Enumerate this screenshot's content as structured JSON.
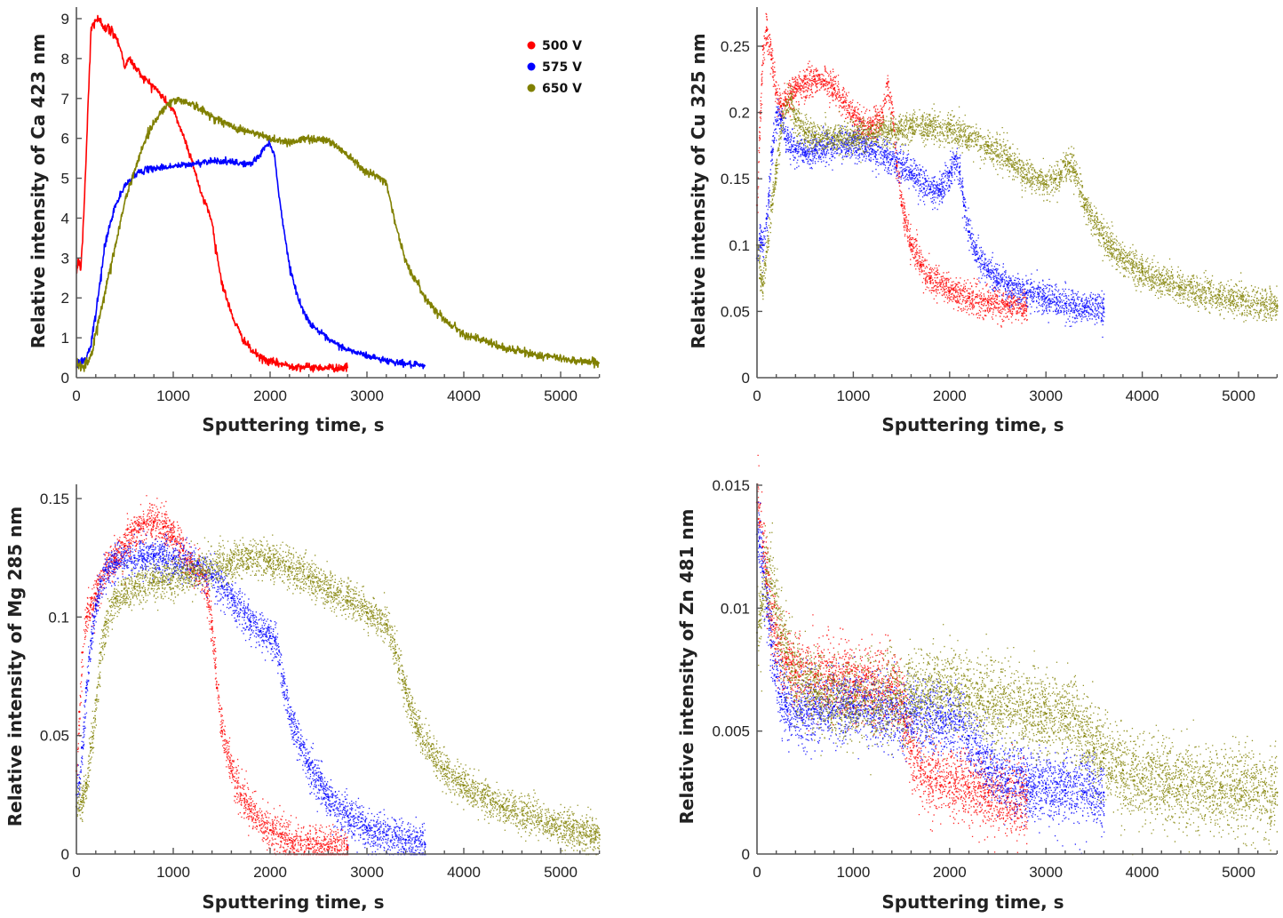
{
  "figure": {
    "legend": {
      "placement": "top-right of first panel",
      "entries": [
        {
          "label": "500 V",
          "color": "#ff0000"
        },
        {
          "label": "575 V",
          "color": "#0000ff"
        },
        {
          "label": "650 V",
          "color": "#808000"
        }
      ]
    }
  },
  "chart_data": [
    {
      "id": "ca",
      "type": "line",
      "title": "",
      "xlabel": "Sputtering time, s",
      "ylabel": "Relative intensity of  Ca 423 nm",
      "xlim": [
        0,
        5400
      ],
      "ylim": [
        0,
        9.2
      ],
      "xticks": [
        0,
        1000,
        2000,
        3000,
        4000,
        5000
      ],
      "xtick_labels": [
        "0",
        "1000",
        "2000",
        "3000",
        "4000",
        "5000"
      ],
      "xminor_step": 200,
      "yticks": [
        0,
        1,
        2,
        3,
        4,
        5,
        6,
        7,
        8,
        9
      ],
      "ytick_labels": [
        "0",
        "1",
        "2",
        "3",
        "4",
        "5",
        "6",
        "7",
        "8",
        "9"
      ],
      "grid": false,
      "legend": true,
      "series": [
        {
          "name": "500 V",
          "color": "#ff0000",
          "noise": 0.05,
          "x": [
            0,
            20,
            40,
            60,
            100,
            150,
            200,
            300,
            400,
            450,
            500,
            550,
            600,
            700,
            800,
            900,
            1000,
            1100,
            1200,
            1300,
            1350,
            1400,
            1450,
            1500,
            1600,
            1700,
            1800,
            1900,
            2000,
            2200,
            2400,
            2600,
            2800
          ],
          "y": [
            2.6,
            3.0,
            2.7,
            3.2,
            5.5,
            8.7,
            9.0,
            8.8,
            8.6,
            8.3,
            7.8,
            8.0,
            7.8,
            7.5,
            7.3,
            7.0,
            6.7,
            6.1,
            5.4,
            4.5,
            4.3,
            3.9,
            3.1,
            2.4,
            1.6,
            1.05,
            0.7,
            0.5,
            0.4,
            0.3,
            0.26,
            0.25,
            0.25
          ]
        },
        {
          "name": "575 V",
          "color": "#0000ff",
          "noise": 0.04,
          "x": [
            0,
            50,
            100,
            150,
            200,
            300,
            400,
            500,
            600,
            700,
            800,
            1000,
            1200,
            1400,
            1600,
            1800,
            1900,
            1950,
            2000,
            2050,
            2100,
            2200,
            2300,
            2400,
            2600,
            2800,
            3000,
            3200,
            3400,
            3600
          ],
          "y": [
            0.3,
            0.4,
            0.45,
            0.8,
            1.6,
            3.4,
            4.3,
            4.8,
            5.1,
            5.2,
            5.25,
            5.3,
            5.35,
            5.45,
            5.4,
            5.35,
            5.6,
            5.8,
            5.9,
            5.5,
            4.4,
            2.8,
            1.9,
            1.4,
            0.95,
            0.7,
            0.55,
            0.43,
            0.35,
            0.28
          ]
        },
        {
          "name": "650 V",
          "color": "#808000",
          "noise": 0.05,
          "x": [
            0,
            50,
            100,
            150,
            200,
            300,
            400,
            500,
            600,
            700,
            800,
            900,
            1000,
            1100,
            1200,
            1400,
            1600,
            1800,
            2000,
            2200,
            2400,
            2600,
            2800,
            3000,
            3100,
            3200,
            3300,
            3400,
            3600,
            3800,
            4000,
            4400,
            4800,
            5200,
            5400
          ],
          "y": [
            0.3,
            0.3,
            0.35,
            0.5,
            1.1,
            2.2,
            3.3,
            4.4,
            5.2,
            5.9,
            6.4,
            6.75,
            6.95,
            6.95,
            6.85,
            6.55,
            6.3,
            6.15,
            6.0,
            5.9,
            6.0,
            5.95,
            5.6,
            5.15,
            5.05,
            4.9,
            3.8,
            2.9,
            2.0,
            1.45,
            1.1,
            0.75,
            0.55,
            0.42,
            0.38
          ]
        }
      ]
    },
    {
      "id": "cu",
      "type": "scatter",
      "title": "",
      "xlabel": "Sputtering time, s",
      "ylabel": "Relative intensity of  Cu 325 nm",
      "xlim": [
        0,
        5400
      ],
      "ylim": [
        0,
        0.28
      ],
      "xticks": [
        0,
        1000,
        2000,
        3000,
        4000,
        5000
      ],
      "xtick_labels": [
        "0",
        "1000",
        "2000",
        "3000",
        "4000",
        "5000"
      ],
      "xminor_step": 200,
      "yticks": [
        0,
        0.05,
        0.1,
        0.15,
        0.2,
        0.25
      ],
      "ytick_labels": [
        "0",
        "0.05",
        "0.1",
        "0.15",
        "0.2",
        "0.25"
      ],
      "grid": false,
      "legend": false,
      "series": [
        {
          "name": "500 V",
          "color": "#ff0000",
          "noise": 0.006,
          "x": [
            0,
            30,
            60,
            100,
            150,
            200,
            250,
            300,
            400,
            500,
            600,
            700,
            800,
            900,
            1000,
            1100,
            1200,
            1300,
            1350,
            1400,
            1450,
            1500,
            1600,
            1700,
            1800,
            2000,
            2200,
            2400,
            2600,
            2800
          ],
          "y": [
            0.13,
            0.2,
            0.25,
            0.262,
            0.24,
            0.215,
            0.205,
            0.21,
            0.218,
            0.222,
            0.225,
            0.224,
            0.218,
            0.208,
            0.198,
            0.19,
            0.19,
            0.2,
            0.222,
            0.2,
            0.16,
            0.13,
            0.1,
            0.085,
            0.075,
            0.065,
            0.06,
            0.057,
            0.055,
            0.054
          ]
        },
        {
          "name": "575 V",
          "color": "#0000ff",
          "noise": 0.006,
          "x": [
            0,
            30,
            60,
            100,
            150,
            200,
            250,
            300,
            400,
            500,
            600,
            800,
            1000,
            1200,
            1400,
            1600,
            1800,
            1900,
            2000,
            2050,
            2100,
            2150,
            2200,
            2300,
            2400,
            2600,
            2800,
            3000,
            3200,
            3400,
            3600
          ],
          "y": [
            0.09,
            0.105,
            0.1,
            0.12,
            0.17,
            0.2,
            0.195,
            0.18,
            0.172,
            0.17,
            0.172,
            0.176,
            0.177,
            0.172,
            0.165,
            0.155,
            0.142,
            0.142,
            0.155,
            0.165,
            0.155,
            0.13,
            0.11,
            0.09,
            0.08,
            0.07,
            0.064,
            0.06,
            0.056,
            0.053,
            0.052
          ]
        },
        {
          "name": "650 V",
          "color": "#808000",
          "noise": 0.006,
          "x": [
            0,
            30,
            60,
            100,
            150,
            200,
            250,
            300,
            350,
            400,
            500,
            600,
            800,
            1000,
            1200,
            1400,
            1600,
            1800,
            2000,
            2200,
            2400,
            2600,
            2800,
            3000,
            3100,
            3200,
            3250,
            3300,
            3400,
            3600,
            3800,
            4000,
            4400,
            4800,
            5200,
            5400
          ],
          "y": [
            0.1,
            0.075,
            0.07,
            0.095,
            0.13,
            0.16,
            0.19,
            0.205,
            0.21,
            0.195,
            0.185,
            0.182,
            0.182,
            0.183,
            0.184,
            0.187,
            0.189,
            0.19,
            0.187,
            0.181,
            0.175,
            0.165,
            0.153,
            0.146,
            0.15,
            0.16,
            0.162,
            0.155,
            0.13,
            0.105,
            0.09,
            0.08,
            0.068,
            0.062,
            0.056,
            0.054
          ]
        }
      ]
    },
    {
      "id": "mg",
      "type": "scatter",
      "title": "",
      "xlabel": "Sputtering time, s",
      "ylabel": "Relative intensity of  Mg 285 nm",
      "xlim": [
        0,
        5400
      ],
      "ylim": [
        0,
        0.155
      ],
      "xticks": [
        0,
        1000,
        2000,
        3000,
        4000,
        5000
      ],
      "xtick_labels": [
        "0",
        "1000",
        "2000",
        "3000",
        "4000",
        "5000"
      ],
      "xminor_step": 200,
      "yticks": [
        0,
        0.05,
        0.1,
        0.15
      ],
      "ytick_labels": [
        "0",
        "0.05",
        "0.1",
        "0.15"
      ],
      "grid": false,
      "legend": false,
      "series": [
        {
          "name": "500 V",
          "color": "#ff0000",
          "noise": 0.004,
          "x": [
            0,
            30,
            60,
            100,
            150,
            200,
            300,
            400,
            500,
            600,
            700,
            800,
            900,
            1000,
            1100,
            1200,
            1300,
            1350,
            1400,
            1450,
            1500,
            1600,
            1700,
            1800,
            2000,
            2200,
            2400,
            2600,
            2800
          ],
          "y": [
            0.035,
            0.06,
            0.085,
            0.1,
            0.105,
            0.11,
            0.12,
            0.125,
            0.13,
            0.137,
            0.14,
            0.14,
            0.138,
            0.134,
            0.128,
            0.122,
            0.118,
            0.11,
            0.095,
            0.07,
            0.052,
            0.035,
            0.025,
            0.018,
            0.01,
            0.006,
            0.004,
            0.003,
            0.003
          ]
        },
        {
          "name": "575 V",
          "color": "#0000ff",
          "noise": 0.004,
          "x": [
            0,
            30,
            60,
            100,
            150,
            200,
            250,
            300,
            400,
            600,
            800,
            1000,
            1200,
            1400,
            1500,
            1600,
            1800,
            1900,
            2000,
            2050,
            2100,
            2200,
            2400,
            2600,
            2800,
            3000,
            3200,
            3400,
            3600
          ],
          "y": [
            0.025,
            0.03,
            0.045,
            0.07,
            0.09,
            0.105,
            0.115,
            0.12,
            0.123,
            0.125,
            0.126,
            0.125,
            0.122,
            0.117,
            0.113,
            0.108,
            0.098,
            0.094,
            0.092,
            0.09,
            0.08,
            0.058,
            0.037,
            0.024,
            0.016,
            0.011,
            0.008,
            0.006,
            0.004
          ]
        },
        {
          "name": "650 V",
          "color": "#808000",
          "noise": 0.004,
          "x": [
            0,
            50,
            100,
            150,
            200,
            250,
            300,
            400,
            600,
            800,
            1000,
            1200,
            1400,
            1600,
            1800,
            2000,
            2200,
            2400,
            2600,
            2800,
            3000,
            3200,
            3300,
            3400,
            3500,
            3600,
            3800,
            4000,
            4400,
            4800,
            5200,
            5400
          ],
          "y": [
            0.02,
            0.022,
            0.03,
            0.045,
            0.065,
            0.085,
            0.098,
            0.108,
            0.113,
            0.115,
            0.117,
            0.119,
            0.121,
            0.124,
            0.125,
            0.124,
            0.121,
            0.117,
            0.112,
            0.107,
            0.102,
            0.097,
            0.085,
            0.068,
            0.055,
            0.046,
            0.036,
            0.029,
            0.02,
            0.014,
            0.009,
            0.008
          ]
        }
      ]
    },
    {
      "id": "zn",
      "type": "scatter",
      "title": "",
      "xlabel": "Sputtering time, s",
      "ylabel": "Relative intensity of  Zn 481 nm",
      "xlim": [
        0,
        5400
      ],
      "ylim": [
        0,
        0.015
      ],
      "xticks": [
        0,
        1000,
        2000,
        3000,
        4000,
        5000
      ],
      "xtick_labels": [
        "0",
        "1000",
        "2000",
        "3000",
        "4000",
        "5000"
      ],
      "xminor_step": 200,
      "yticks": [
        0,
        0.005,
        0.01,
        0.015
      ],
      "ytick_labels": [
        "0",
        "0.005",
        "0.01",
        "0.015"
      ],
      "grid": false,
      "legend": false,
      "series": [
        {
          "name": "500 V",
          "color": "#ff0000",
          "noise": 0.00075,
          "x": [
            0,
            30,
            60,
            100,
            150,
            200,
            300,
            400,
            600,
            800,
            1000,
            1200,
            1400,
            1500,
            1550,
            1600,
            1700,
            1800,
            2000,
            2200,
            2400,
            2600,
            2800
          ],
          "y": [
            0.0143,
            0.0135,
            0.0125,
            0.011,
            0.0095,
            0.0085,
            0.0078,
            0.0074,
            0.0072,
            0.0071,
            0.007,
            0.0069,
            0.0068,
            0.0062,
            0.0052,
            0.0042,
            0.0035,
            0.0031,
            0.0029,
            0.0027,
            0.0025,
            0.0023,
            0.0022
          ]
        },
        {
          "name": "575 V",
          "color": "#0000ff",
          "noise": 0.0007,
          "x": [
            0,
            30,
            60,
            100,
            150,
            200,
            250,
            300,
            400,
            600,
            800,
            1000,
            1200,
            1400,
            1600,
            1800,
            2000,
            2100,
            2200,
            2300,
            2400,
            2600,
            2800,
            3000,
            3200,
            3400,
            3600
          ],
          "y": [
            0.013,
            0.0125,
            0.0115,
            0.01,
            0.0085,
            0.0072,
            0.0064,
            0.006,
            0.0058,
            0.0059,
            0.006,
            0.006,
            0.0059,
            0.0058,
            0.0057,
            0.0056,
            0.0055,
            0.0054,
            0.0048,
            0.0041,
            0.0035,
            0.003,
            0.0028,
            0.0027,
            0.0026,
            0.0025,
            0.0025
          ]
        },
        {
          "name": "650 V",
          "color": "#808000",
          "noise": 0.00085,
          "x": [
            0,
            30,
            60,
            100,
            150,
            200,
            250,
            300,
            400,
            600,
            800,
            1000,
            1200,
            1400,
            1600,
            1800,
            2000,
            2200,
            2400,
            2600,
            2800,
            3000,
            3200,
            3300,
            3400,
            3500,
            3600,
            3800,
            4000,
            4400,
            4800,
            5200,
            5400
          ],
          "y": [
            0.009,
            0.0095,
            0.0105,
            0.0115,
            0.011,
            0.01,
            0.009,
            0.0082,
            0.0072,
            0.0066,
            0.0063,
            0.0062,
            0.0062,
            0.0063,
            0.0066,
            0.0067,
            0.0066,
            0.0064,
            0.0062,
            0.006,
            0.0058,
            0.0057,
            0.0056,
            0.0055,
            0.0048,
            0.0043,
            0.0039,
            0.0034,
            0.0031,
            0.0028,
            0.0026,
            0.0025,
            0.0025
          ]
        }
      ]
    }
  ]
}
